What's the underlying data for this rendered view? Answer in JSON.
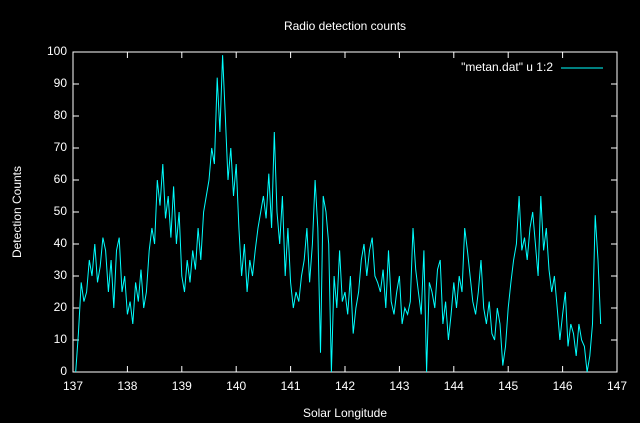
{
  "chart_data": {
    "type": "line",
    "title": "Radio detection counts",
    "xlabel": "Solar Longitude",
    "ylabel": "Detection Counts",
    "x": [
      137.05,
      137.1,
      137.15,
      137.2,
      137.25,
      137.3,
      137.35,
      137.4,
      137.45,
      137.5,
      137.55,
      137.6,
      137.65,
      137.7,
      137.75,
      137.8,
      137.85,
      137.9,
      137.95,
      138,
      138.05,
      138.1,
      138.15,
      138.2,
      138.25,
      138.3,
      138.35,
      138.4,
      138.45,
      138.5,
      138.55,
      138.6,
      138.65,
      138.7,
      138.75,
      138.8,
      138.85,
      138.9,
      138.95,
      139,
      139.05,
      139.1,
      139.15,
      139.2,
      139.25,
      139.3,
      139.35,
      139.4,
      139.45,
      139.5,
      139.55,
      139.6,
      139.65,
      139.7,
      139.75,
      139.8,
      139.85,
      139.9,
      139.95,
      140,
      140.05,
      140.1,
      140.15,
      140.2,
      140.25,
      140.3,
      140.35,
      140.4,
      140.45,
      140.5,
      140.55,
      140.6,
      140.65,
      140.7,
      140.75,
      140.8,
      140.85,
      140.9,
      140.95,
      141,
      141.05,
      141.1,
      141.15,
      141.2,
      141.25,
      141.3,
      141.35,
      141.4,
      141.45,
      141.5,
      141.55,
      141.6,
      141.65,
      141.7,
      141.75,
      141.8,
      141.85,
      141.9,
      141.95,
      142,
      142.05,
      142.1,
      142.15,
      142.2,
      142.25,
      142.3,
      142.35,
      142.4,
      142.45,
      142.5,
      142.55,
      142.6,
      142.65,
      142.7,
      142.75,
      142.8,
      142.85,
      142.9,
      142.95,
      143,
      143.05,
      143.1,
      143.15,
      143.2,
      143.25,
      143.3,
      143.35,
      143.4,
      143.45,
      143.5,
      143.55,
      143.6,
      143.65,
      143.7,
      143.75,
      143.8,
      143.85,
      143.9,
      143.95,
      144,
      144.05,
      144.1,
      144.15,
      144.2,
      144.25,
      144.3,
      144.35,
      144.4,
      144.45,
      144.5,
      144.55,
      144.6,
      144.65,
      144.7,
      144.75,
      144.8,
      144.85,
      144.9,
      144.95,
      145,
      145.05,
      145.1,
      145.15,
      145.2,
      145.25,
      145.3,
      145.35,
      145.4,
      145.45,
      145.5,
      145.55,
      145.6,
      145.65,
      145.7,
      145.75,
      145.8,
      145.85,
      145.9,
      145.95,
      146,
      146.05,
      146.1,
      146.15,
      146.2,
      146.25,
      146.3,
      146.35,
      146.4,
      146.45,
      146.5,
      146.55,
      146.6,
      146.65,
      146.7
    ],
    "series": [
      {
        "name": "\"metan.dat\" u 1:2",
        "color": "#00ffff",
        "values": [
          0,
          12,
          28,
          22,
          25,
          35,
          30,
          40,
          28,
          33,
          42,
          38,
          25,
          35,
          20,
          38,
          42,
          25,
          30,
          18,
          22,
          15,
          28,
          22,
          32,
          20,
          25,
          38,
          45,
          40,
          60,
          52,
          65,
          48,
          55,
          42,
          58,
          40,
          50,
          30,
          25,
          35,
          28,
          38,
          32,
          45,
          35,
          50,
          55,
          60,
          70,
          65,
          92,
          75,
          99,
          80,
          60,
          70,
          55,
          65,
          45,
          30,
          40,
          25,
          35,
          30,
          38,
          45,
          50,
          55,
          48,
          62,
          45,
          75,
          50,
          40,
          55,
          30,
          45,
          28,
          20,
          25,
          22,
          30,
          35,
          45,
          28,
          40,
          60,
          45,
          6,
          55,
          50,
          40,
          0,
          30,
          20,
          38,
          22,
          25,
          18,
          30,
          12,
          20,
          25,
          35,
          40,
          30,
          38,
          42,
          30,
          28,
          25,
          32,
          20,
          38,
          22,
          18,
          25,
          30,
          15,
          20,
          18,
          22,
          45,
          32,
          25,
          18,
          38,
          0,
          28,
          25,
          20,
          32,
          35,
          15,
          22,
          10,
          18,
          28,
          20,
          30,
          25,
          45,
          38,
          30,
          22,
          18,
          25,
          35,
          20,
          15,
          22,
          12,
          10,
          20,
          15,
          2,
          8,
          20,
          28,
          35,
          40,
          55,
          38,
          42,
          35,
          45,
          50,
          40,
          30,
          55,
          38,
          45,
          32,
          25,
          30,
          20,
          10,
          18,
          25,
          8,
          15,
          12,
          5,
          15,
          10,
          8,
          0,
          5,
          15,
          49,
          35,
          15
        ]
      }
    ],
    "xlim": [
      137,
      147
    ],
    "xticks": [
      137,
      138,
      139,
      140,
      141,
      142,
      143,
      144,
      145,
      146,
      147
    ],
    "ylim": [
      0,
      100
    ],
    "yticks": [
      0,
      10,
      20,
      30,
      40,
      50,
      60,
      70,
      80,
      90,
      100
    ],
    "legend": "top-right"
  }
}
